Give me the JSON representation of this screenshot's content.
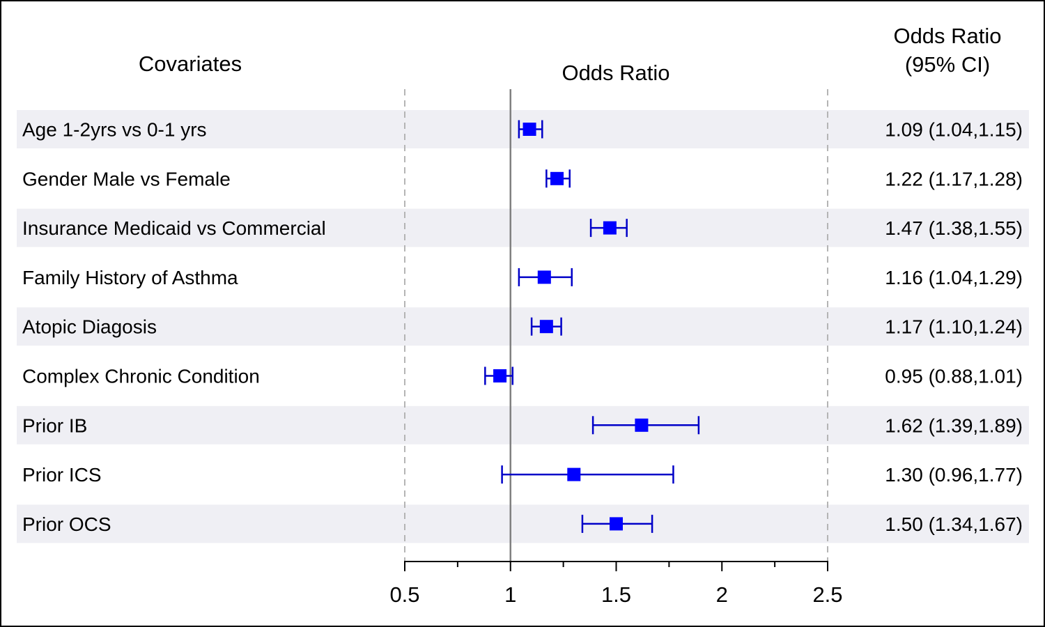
{
  "chart_data": {
    "type": "forest",
    "column_headers": {
      "covariates": "Covariates",
      "plot": "Odds Ratio",
      "ci_line1": "Odds Ratio",
      "ci_line2": "(95% CI)"
    },
    "x_axis": {
      "range": [
        0.5,
        2.5
      ],
      "ticks": [
        0.5,
        1,
        1.5,
        2,
        2.5
      ],
      "tick_labels": [
        "0.5",
        "1",
        "1.5",
        "2",
        "2.5"
      ],
      "minor_ticks": [
        0.75,
        1.25,
        1.75,
        2.25
      ],
      "reference_line": 1,
      "dashed_lines": [
        0.5,
        2.5
      ]
    },
    "rows": [
      {
        "label": "Age 1-2yrs vs 0-1 yrs",
        "or": 1.09,
        "lo": 1.04,
        "hi": 1.15,
        "ci_text": "1.09 (1.04,1.15)",
        "shaded": true
      },
      {
        "label": "Gender Male vs Female",
        "or": 1.22,
        "lo": 1.17,
        "hi": 1.28,
        "ci_text": "1.22 (1.17,1.28)",
        "shaded": false
      },
      {
        "label": "Insurance Medicaid vs Commercial",
        "or": 1.47,
        "lo": 1.38,
        "hi": 1.55,
        "ci_text": "1.47 (1.38,1.55)",
        "shaded": true
      },
      {
        "label": "Family History of Asthma",
        "or": 1.16,
        "lo": 1.04,
        "hi": 1.29,
        "ci_text": "1.16 (1.04,1.29)",
        "shaded": false
      },
      {
        "label": "Atopic Diagosis",
        "or": 1.17,
        "lo": 1.1,
        "hi": 1.24,
        "ci_text": "1.17 (1.10,1.24)",
        "shaded": true
      },
      {
        "label": "Complex Chronic Condition",
        "or": 0.95,
        "lo": 0.88,
        "hi": 1.01,
        "ci_text": "0.95 (0.88,1.01)",
        "shaded": false
      },
      {
        "label": "Prior IB",
        "or": 1.62,
        "lo": 1.39,
        "hi": 1.89,
        "ci_text": "1.62 (1.39,1.89)",
        "shaded": true
      },
      {
        "label": "Prior ICS",
        "or": 1.3,
        "lo": 0.96,
        "hi": 1.77,
        "ci_text": "1.30 (0.96,1.77)",
        "shaded": false
      },
      {
        "label": "Prior OCS",
        "or": 1.5,
        "lo": 1.34,
        "hi": 1.67,
        "ci_text": "1.50 (1.34,1.67)",
        "shaded": true
      }
    ],
    "colors": {
      "marker": "#0000ff",
      "whisker": "#0000c8",
      "row_shade": "#efeff4",
      "reference_line": "#808080",
      "dashed_line": "#b4b4b4"
    }
  }
}
